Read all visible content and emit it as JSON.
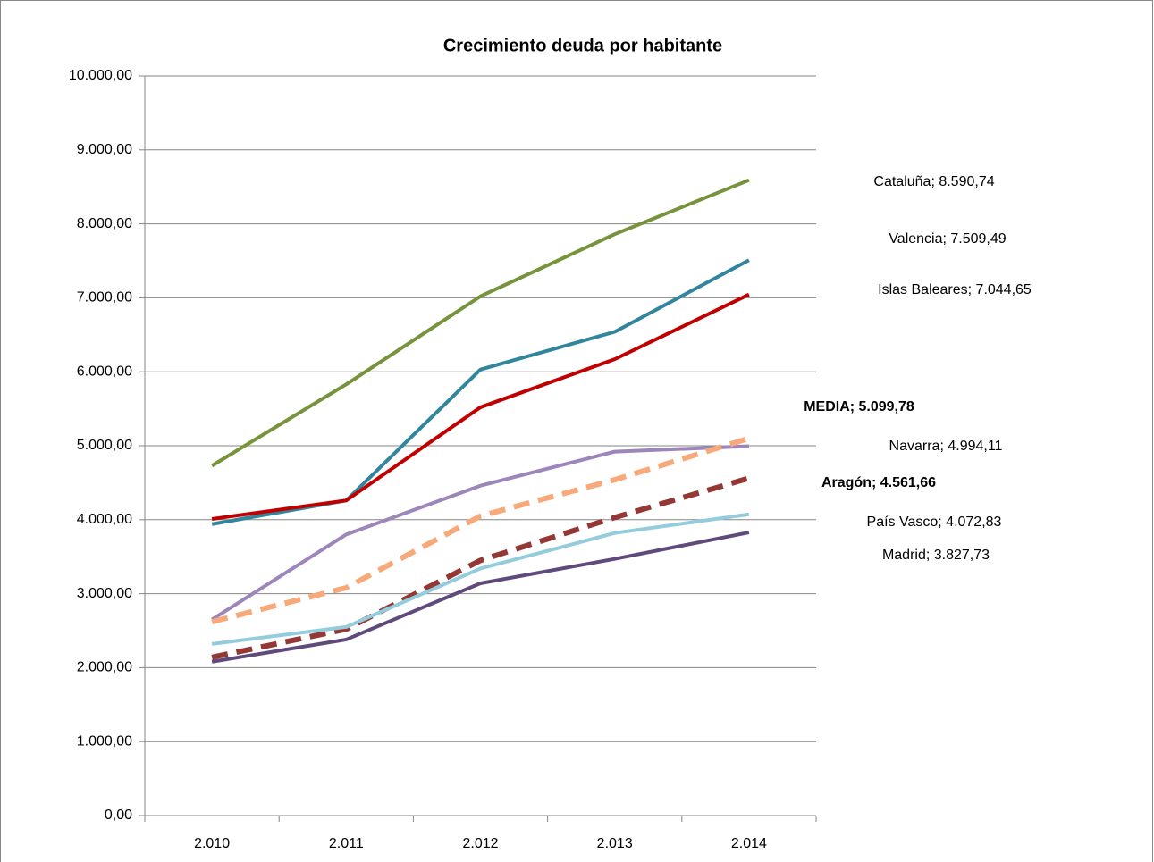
{
  "chart_data": {
    "type": "line",
    "title": "Crecimiento deuda por habitante",
    "categories": [
      "2.010",
      "2.011",
      "2.012",
      "2.013",
      "2.014"
    ],
    "ylim": [
      0,
      10000
    ],
    "yticks": [
      {
        "value": 0,
        "label": "0,00"
      },
      {
        "value": 1000,
        "label": "1.000,00"
      },
      {
        "value": 2000,
        "label": "2.000,00"
      },
      {
        "value": 3000,
        "label": "3.000,00"
      },
      {
        "value": 4000,
        "label": "4.000,00"
      },
      {
        "value": 5000,
        "label": "5.000,00"
      },
      {
        "value": 6000,
        "label": "6.000,00"
      },
      {
        "value": 7000,
        "label": "7.000,00"
      },
      {
        "value": 8000,
        "label": "8.000,00"
      },
      {
        "value": 9000,
        "label": "9.000,00"
      },
      {
        "value": 10000,
        "label": "10.000,00"
      }
    ],
    "grid": true,
    "series": [
      {
        "name": "Cataluña",
        "color": "#77933c",
        "values": [
          4730,
          5830,
          7020,
          7860,
          8590.74
        ],
        "value_labels": [
          null,
          null,
          null,
          null,
          "Cataluña; 8.590,74"
        ]
      },
      {
        "name": "Valencia",
        "color": "#31859c",
        "values": [
          3940,
          4260,
          6030,
          6540,
          7509.49
        ],
        "value_labels": [
          null,
          null,
          null,
          null,
          "Valencia; 7.509,49"
        ]
      },
      {
        "name": "Islas Baleares",
        "color": "#c00000",
        "values": [
          4010,
          4260,
          5520,
          6170,
          7044.65
        ],
        "value_labels": [
          null,
          null,
          null,
          null,
          "Islas Baleares; 7.044,65"
        ]
      },
      {
        "name": "Navarra",
        "color": "#9c86ba",
        "values": [
          2650,
          3800,
          4460,
          4920,
          4994.11
        ],
        "value_labels": [
          null,
          null,
          null,
          null,
          "Navarra; 4.994,11"
        ]
      },
      {
        "name": "MEDIA",
        "color": "#f7a97a",
        "dashed": true,
        "bold_label": true,
        "values": [
          2620,
          3080,
          4050,
          4540,
          5099.78
        ],
        "value_labels": [
          null,
          null,
          null,
          null,
          "MEDIA; 5.099,78"
        ]
      },
      {
        "name": "Aragón",
        "color": "#953735",
        "dashed": true,
        "bold_label": true,
        "values": [
          2140,
          2520,
          3450,
          4030,
          4561.66
        ],
        "value_labels": [
          null,
          null,
          null,
          null,
          "Aragón; 4.561,66"
        ]
      },
      {
        "name": "País Vasco",
        "color": "#93cddd",
        "values": [
          2320,
          2550,
          3340,
          3820,
          4072.83
        ],
        "value_labels": [
          null,
          null,
          null,
          null,
          "País Vasco; 4.072,83"
        ]
      },
      {
        "name": "Madrid",
        "color": "#604a7b",
        "values": [
          2080,
          2380,
          3140,
          3470,
          3827.73
        ],
        "value_labels": [
          null,
          null,
          null,
          null,
          "Madrid; 3.827,73"
        ]
      }
    ]
  }
}
